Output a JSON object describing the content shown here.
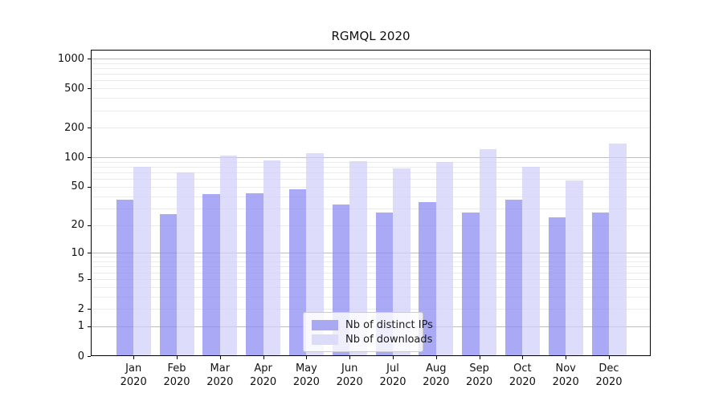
{
  "title": "RGMQL 2020",
  "year_label": "2020",
  "legend": {
    "items": [
      {
        "label": "Nb of distinct IPs",
        "color": "#a9a9f2"
      },
      {
        "label": "Nb of downloads",
        "color": "#dcdcf9"
      }
    ]
  },
  "colors": {
    "ip_bar_fill": "rgba(140,140,243,0.75)",
    "download_bar_fill": "rgba(208,208,249,0.72)",
    "major_grid": "#bdbdbd",
    "minor_grid": "#ebebeb",
    "spine": "#000000"
  },
  "chart_data": {
    "type": "bar",
    "title": "RGMQL 2020",
    "categories": [
      "Jan 2020",
      "Feb 2020",
      "Mar 2020",
      "Apr 2020",
      "May 2020",
      "Jun 2020",
      "Jul 2020",
      "Aug 2020",
      "Sep 2020",
      "Oct 2020",
      "Nov 2020",
      "Dec 2020"
    ],
    "month_labels": [
      "Jan",
      "Feb",
      "Mar",
      "Apr",
      "May",
      "Jun",
      "Jul",
      "Aug",
      "Sep",
      "Oct",
      "Nov",
      "Dec"
    ],
    "series": [
      {
        "name": "Nb of distinct IPs",
        "values": [
          37,
          26,
          42,
          43,
          47,
          33,
          27,
          35,
          27,
          37,
          24,
          27
        ]
      },
      {
        "name": "Nb of downloads",
        "values": [
          80,
          70,
          105,
          93,
          110,
          92,
          77,
          89,
          121,
          80,
          58,
          137
        ]
      }
    ],
    "xlabel": "",
    "ylabel": "",
    "y_scale": "log1p",
    "ylim": [
      0,
      1230
    ],
    "y_ticks": [
      0,
      1,
      2,
      5,
      10,
      20,
      50,
      100,
      200,
      500,
      1000
    ],
    "y_major_gridlines": [
      1,
      10,
      100,
      1000
    ],
    "y_minor_gridlines": [
      2,
      3,
      4,
      5,
      6,
      7,
      8,
      9,
      20,
      30,
      40,
      50,
      60,
      70,
      80,
      90,
      200,
      300,
      400,
      500,
      600,
      700,
      800,
      900
    ],
    "grid": true,
    "legend_position": "lower center"
  }
}
